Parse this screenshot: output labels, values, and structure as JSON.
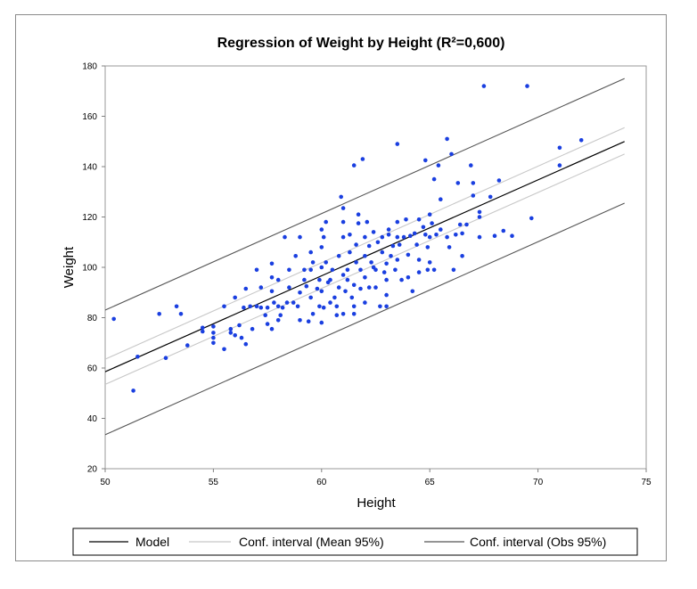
{
  "chart_data": {
    "type": "scatter",
    "title": "Regression of Weight by Height (R²=0,600)",
    "xlabel": "Height",
    "ylabel": "Weight",
    "xlim": [
      50,
      75
    ],
    "ylim": [
      20,
      180
    ],
    "xticks": [
      "50",
      "55",
      "60",
      "65",
      "70",
      "75"
    ],
    "yticks": [
      "20",
      "40",
      "60",
      "80",
      "100",
      "120",
      "140",
      "160",
      "180"
    ],
    "grid": false,
    "legend_position": "bottom",
    "colors": {
      "points": "#1a3fe0",
      "model": "#000000",
      "conf_mean": "#c8c8c8",
      "conf_obs": "#555555"
    },
    "legend": [
      {
        "name": "Model",
        "color": "#000000"
      },
      {
        "name": "Conf. interval (Mean 95%)",
        "color": "#c8c8c8"
      },
      {
        "name": "Conf. interval (Obs 95%)",
        "color": "#555555"
      }
    ],
    "lines": {
      "model": {
        "x": [
          50,
          74
        ],
        "y": [
          58.5,
          150.0
        ]
      },
      "conf_mean_upper": {
        "x": [
          50,
          74
        ],
        "y": [
          63.5,
          155.5
        ]
      },
      "conf_mean_lower": {
        "x": [
          50,
          74
        ],
        "y": [
          53.5,
          145.0
        ]
      },
      "conf_obs_upper": {
        "x": [
          50,
          74
        ],
        "y": [
          83.0,
          175.0
        ]
      },
      "conf_obs_lower": {
        "x": [
          50,
          74
        ],
        "y": [
          33.5,
          125.5
        ]
      }
    },
    "points": [
      [
        50.4,
        79.5
      ],
      [
        51.3,
        51
      ],
      [
        51.5,
        64.5
      ],
      [
        52.5,
        81.5
      ],
      [
        52.8,
        64
      ],
      [
        53.3,
        84.5
      ],
      [
        53.5,
        81.5
      ],
      [
        53.8,
        69
      ],
      [
        54.5,
        74.5
      ],
      [
        54.5,
        76
      ],
      [
        55,
        70
      ],
      [
        55,
        72
      ],
      [
        55,
        74
      ],
      [
        55,
        76.5
      ],
      [
        55.5,
        67.5
      ],
      [
        55.5,
        84.5
      ],
      [
        55.8,
        75.5
      ],
      [
        55.8,
        74
      ],
      [
        56,
        73
      ],
      [
        56,
        88
      ],
      [
        56.2,
        77
      ],
      [
        56.3,
        72
      ],
      [
        56.4,
        84
      ],
      [
        56.5,
        69.5
      ],
      [
        56.5,
        91.5
      ],
      [
        56.7,
        84.5
      ],
      [
        56.8,
        75.5
      ],
      [
        57,
        84.5
      ],
      [
        57,
        99
      ],
      [
        57.2,
        84
      ],
      [
        57.2,
        92
      ],
      [
        57.4,
        81
      ],
      [
        57.5,
        84
      ],
      [
        57.5,
        77.5
      ],
      [
        57.7,
        101.5
      ],
      [
        57.7,
        96
      ],
      [
        57.7,
        90.5
      ],
      [
        57.7,
        75.5
      ],
      [
        57.8,
        86
      ],
      [
        58,
        84.5
      ],
      [
        58,
        79
      ],
      [
        58,
        95
      ],
      [
        58.1,
        81
      ],
      [
        58.2,
        84
      ],
      [
        58.3,
        112
      ],
      [
        58.4,
        86
      ],
      [
        58.5,
        99
      ],
      [
        58.5,
        92
      ],
      [
        58.7,
        86
      ],
      [
        58.8,
        104.5
      ],
      [
        58.9,
        84.5
      ],
      [
        59,
        90
      ],
      [
        59,
        79
      ],
      [
        59,
        112
      ],
      [
        59.2,
        99
      ],
      [
        59.2,
        95
      ],
      [
        59.3,
        92.5
      ],
      [
        59.4,
        78.5
      ],
      [
        59.5,
        88
      ],
      [
        59.5,
        99
      ],
      [
        59.5,
        106
      ],
      [
        59.6,
        102
      ],
      [
        59.6,
        81.5
      ],
      [
        59.8,
        91.5
      ],
      [
        59.9,
        84.5
      ],
      [
        59.9,
        95
      ],
      [
        60,
        115
      ],
      [
        60,
        100
      ],
      [
        60,
        90.5
      ],
      [
        60,
        108
      ],
      [
        60,
        78
      ],
      [
        60.1,
        84
      ],
      [
        60.1,
        112
      ],
      [
        60.2,
        118
      ],
      [
        60.2,
        102
      ],
      [
        60.3,
        94
      ],
      [
        60.4,
        95
      ],
      [
        60.4,
        86
      ],
      [
        60.5,
        99
      ],
      [
        60.6,
        88
      ],
      [
        60.7,
        84.5
      ],
      [
        60.7,
        81
      ],
      [
        60.8,
        92
      ],
      [
        60.8,
        104.5
      ],
      [
        60.9,
        128
      ],
      [
        61,
        123.5
      ],
      [
        61,
        118
      ],
      [
        61,
        112
      ],
      [
        61,
        97
      ],
      [
        61,
        81.5
      ],
      [
        61.1,
        90.5
      ],
      [
        61.2,
        99
      ],
      [
        61.2,
        95
      ],
      [
        61.3,
        106
      ],
      [
        61.3,
        113
      ],
      [
        61.4,
        88
      ],
      [
        61.5,
        140.5
      ],
      [
        61.5,
        93
      ],
      [
        61.5,
        81.5
      ],
      [
        61.5,
        84.5
      ],
      [
        61.6,
        102
      ],
      [
        61.6,
        109
      ],
      [
        61.7,
        121
      ],
      [
        61.7,
        117.5
      ],
      [
        61.8,
        91.5
      ],
      [
        61.8,
        99
      ],
      [
        61.9,
        143
      ],
      [
        62,
        104.5
      ],
      [
        62,
        112
      ],
      [
        62,
        96
      ],
      [
        62,
        86
      ],
      [
        62.1,
        118
      ],
      [
        62.2,
        108.5
      ],
      [
        62.2,
        92
      ],
      [
        62.3,
        102
      ],
      [
        62.4,
        114
      ],
      [
        62.4,
        100
      ],
      [
        62.5,
        99
      ],
      [
        62.5,
        92
      ],
      [
        62.6,
        110
      ],
      [
        62.7,
        84.5
      ],
      [
        62.8,
        106
      ],
      [
        62.8,
        112
      ],
      [
        62.9,
        98
      ],
      [
        63,
        101.5
      ],
      [
        63,
        95
      ],
      [
        63,
        89
      ],
      [
        63,
        84.5
      ],
      [
        63.1,
        115
      ],
      [
        63.1,
        113
      ],
      [
        63.2,
        104.5
      ],
      [
        63.3,
        108.5
      ],
      [
        63.4,
        99
      ],
      [
        63.5,
        149
      ],
      [
        63.5,
        118
      ],
      [
        63.5,
        112
      ],
      [
        63.5,
        103
      ],
      [
        63.6,
        109
      ],
      [
        63.7,
        95
      ],
      [
        63.8,
        112
      ],
      [
        63.9,
        119
      ],
      [
        64,
        105
      ],
      [
        64,
        96
      ],
      [
        64.1,
        112.5
      ],
      [
        64.2,
        90.5
      ],
      [
        64.3,
        113.5
      ],
      [
        64.4,
        109
      ],
      [
        64.5,
        98
      ],
      [
        64.5,
        103
      ],
      [
        64.5,
        119
      ],
      [
        64.7,
        116
      ],
      [
        64.8,
        142.5
      ],
      [
        64.8,
        113
      ],
      [
        64.9,
        108
      ],
      [
        64.9,
        99
      ],
      [
        65,
        121
      ],
      [
        65,
        112
      ],
      [
        65,
        102
      ],
      [
        65.1,
        117.5
      ],
      [
        65.2,
        135
      ],
      [
        65.2,
        99
      ],
      [
        65.3,
        113
      ],
      [
        65.4,
        140.5
      ],
      [
        65.5,
        127
      ],
      [
        65.5,
        115
      ],
      [
        65.8,
        151
      ],
      [
        65.8,
        112
      ],
      [
        65.9,
        108
      ],
      [
        66,
        145
      ],
      [
        66.1,
        99
      ],
      [
        66.2,
        113
      ],
      [
        66.3,
        133.5
      ],
      [
        66.4,
        117
      ],
      [
        66.5,
        113.5
      ],
      [
        66.5,
        104.5
      ],
      [
        66.7,
        117
      ],
      [
        66.9,
        140.5
      ],
      [
        67,
        128.5
      ],
      [
        67,
        133.5
      ],
      [
        67.3,
        122
      ],
      [
        67.3,
        120
      ],
      [
        67.3,
        112
      ],
      [
        67.5,
        172
      ],
      [
        67.8,
        128
      ],
      [
        68,
        112.5
      ],
      [
        68.2,
        134.5
      ],
      [
        68.4,
        114.5
      ],
      [
        68.8,
        112.5
      ],
      [
        69.5,
        172
      ],
      [
        69.7,
        119.5
      ],
      [
        71,
        147.5
      ],
      [
        71,
        140.5
      ],
      [
        72,
        150.5
      ]
    ]
  }
}
